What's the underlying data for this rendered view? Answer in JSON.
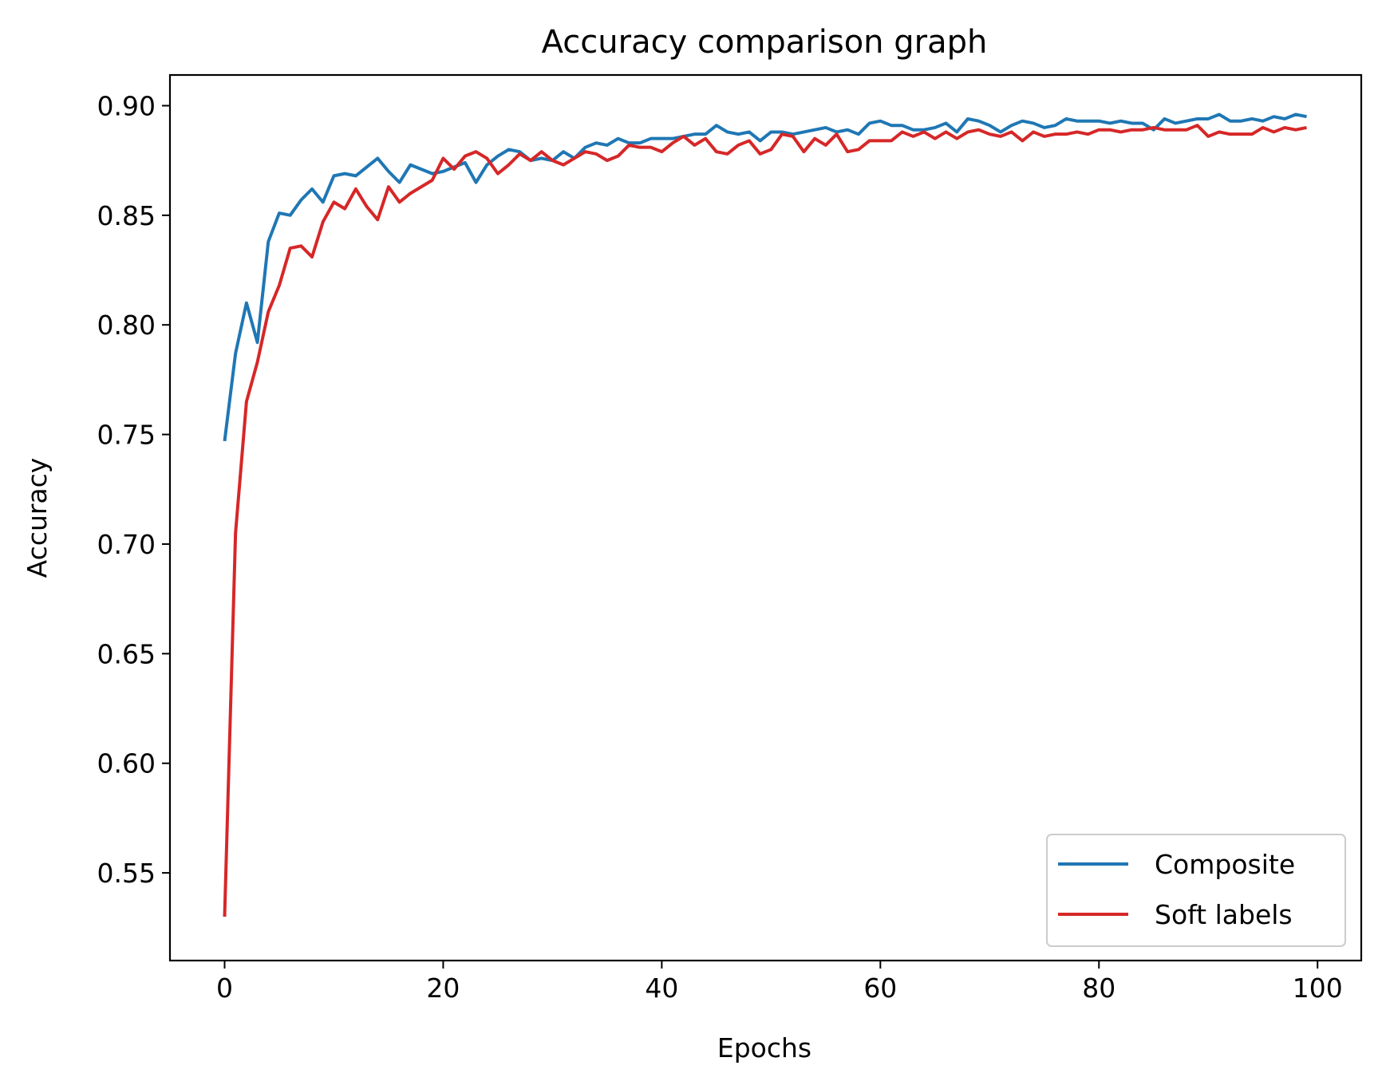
{
  "chart_data": {
    "type": "line",
    "title": "Accuracy comparison graph",
    "xlabel": "Epochs",
    "ylabel": "Accuracy",
    "xlim": [
      -5,
      104
    ],
    "ylim": [
      0.51,
      0.914
    ],
    "xticks": [
      0,
      20,
      40,
      60,
      80,
      100
    ],
    "xtick_labels": [
      "0",
      "20",
      "40",
      "60",
      "80",
      "100"
    ],
    "yticks": [
      0.55,
      0.6,
      0.65,
      0.7,
      0.75,
      0.8,
      0.85,
      0.9
    ],
    "ytick_labels": [
      "0.55",
      "0.60",
      "0.65",
      "0.70",
      "0.75",
      "0.80",
      "0.85",
      "0.90"
    ],
    "grid": false,
    "legend_position": "lower-right",
    "x": [
      0,
      1,
      2,
      3,
      4,
      5,
      6,
      7,
      8,
      9,
      10,
      11,
      12,
      13,
      14,
      15,
      16,
      17,
      18,
      19,
      20,
      21,
      22,
      23,
      24,
      25,
      26,
      27,
      28,
      29,
      30,
      31,
      32,
      33,
      34,
      35,
      36,
      37,
      38,
      39,
      40,
      41,
      42,
      43,
      44,
      45,
      46,
      47,
      48,
      49,
      50,
      51,
      52,
      53,
      54,
      55,
      56,
      57,
      58,
      59,
      60,
      61,
      62,
      63,
      64,
      65,
      66,
      67,
      68,
      69,
      70,
      71,
      72,
      73,
      74,
      75,
      76,
      77,
      78,
      79,
      80,
      81,
      82,
      83,
      84,
      85,
      86,
      87,
      88,
      89,
      90,
      91,
      92,
      93,
      94,
      95,
      96,
      97,
      98,
      99
    ],
    "series": [
      {
        "name": "Composite",
        "color": "#1f77b4",
        "values": [
          0.747,
          0.787,
          0.81,
          0.792,
          0.838,
          0.851,
          0.85,
          0.857,
          0.862,
          0.856,
          0.868,
          0.869,
          0.868,
          0.872,
          0.876,
          0.87,
          0.865,
          0.873,
          0.871,
          0.869,
          0.87,
          0.872,
          0.874,
          0.865,
          0.873,
          0.877,
          0.88,
          0.879,
          0.875,
          0.876,
          0.875,
          0.879,
          0.876,
          0.881,
          0.883,
          0.882,
          0.885,
          0.883,
          0.883,
          0.885,
          0.885,
          0.885,
          0.886,
          0.887,
          0.887,
          0.891,
          0.888,
          0.887,
          0.888,
          0.884,
          0.888,
          0.888,
          0.887,
          0.888,
          0.889,
          0.89,
          0.888,
          0.889,
          0.887,
          0.892,
          0.893,
          0.891,
          0.891,
          0.889,
          0.889,
          0.89,
          0.892,
          0.888,
          0.894,
          0.893,
          0.891,
          0.888,
          0.891,
          0.893,
          0.892,
          0.89,
          0.891,
          0.894,
          0.893,
          0.893,
          0.893,
          0.892,
          0.893,
          0.892,
          0.892,
          0.889,
          0.894,
          0.892,
          0.893,
          0.894,
          0.894,
          0.896,
          0.893,
          0.893,
          0.894,
          0.893,
          0.895,
          0.894,
          0.896,
          0.895
        ]
      },
      {
        "name": "Soft labels",
        "color": "#d62728",
        "values": [
          0.53,
          0.705,
          0.765,
          0.783,
          0.806,
          0.818,
          0.835,
          0.836,
          0.831,
          0.847,
          0.856,
          0.853,
          0.862,
          0.854,
          0.848,
          0.863,
          0.856,
          0.86,
          0.863,
          0.866,
          0.876,
          0.871,
          0.877,
          0.879,
          0.876,
          0.869,
          0.873,
          0.878,
          0.875,
          0.879,
          0.875,
          0.873,
          0.876,
          0.879,
          0.878,
          0.875,
          0.877,
          0.882,
          0.881,
          0.881,
          0.879,
          0.883,
          0.886,
          0.882,
          0.885,
          0.879,
          0.878,
          0.882,
          0.884,
          0.878,
          0.88,
          0.887,
          0.886,
          0.879,
          0.885,
          0.882,
          0.887,
          0.879,
          0.88,
          0.884,
          0.884,
          0.884,
          0.888,
          0.886,
          0.888,
          0.885,
          0.888,
          0.885,
          0.888,
          0.889,
          0.887,
          0.886,
          0.888,
          0.884,
          0.888,
          0.886,
          0.887,
          0.887,
          0.888,
          0.887,
          0.889,
          0.889,
          0.888,
          0.889,
          0.889,
          0.89,
          0.889,
          0.889,
          0.889,
          0.891,
          0.886,
          0.888,
          0.887,
          0.887,
          0.887,
          0.89,
          0.888,
          0.89,
          0.889,
          0.89
        ]
      }
    ]
  }
}
